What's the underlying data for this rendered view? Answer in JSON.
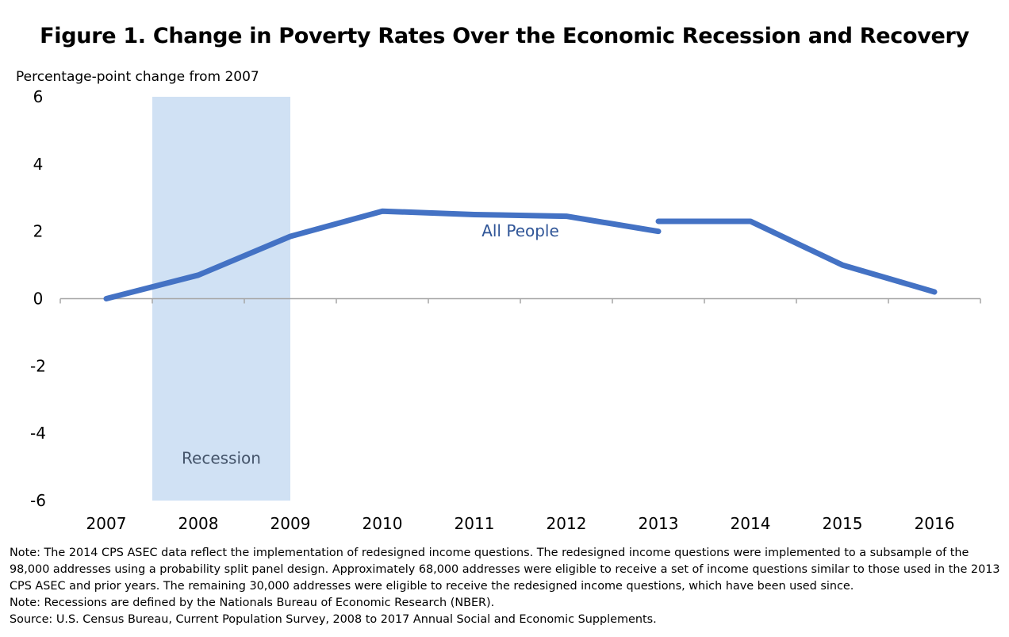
{
  "chart_data": {
    "type": "line",
    "title": "Figure 1. Change in Poverty Rates Over the Economic Recession and Recovery",
    "ylabel": "Percentage-point change from 2007",
    "xlabel": "",
    "ylim": [
      -6,
      6
    ],
    "yticks": [
      "6",
      "4",
      "2",
      "0",
      "-2",
      "-4",
      "-6"
    ],
    "categories": [
      "2007",
      "2008",
      "2009",
      "2010",
      "2011",
      "2012",
      "2013",
      "2014",
      "2015",
      "2016"
    ],
    "series": [
      {
        "name": "All People",
        "color": "#4472C4",
        "segments": [
          {
            "x": [
              "2007",
              "2008",
              "2009",
              "2010",
              "2011",
              "2012",
              "2013"
            ],
            "y": [
              0,
              0.7,
              1.85,
              2.6,
              2.5,
              2.45,
              2.0
            ]
          },
          {
            "x": [
              "2013",
              "2014",
              "2015",
              "2016"
            ],
            "y": [
              2.3,
              2.3,
              1.0,
              0.2
            ]
          }
        ]
      }
    ],
    "shaded_region": {
      "label": "Recession",
      "x_start": "2007.5",
      "x_end": "2009",
      "color": "#D0E1F4"
    },
    "grid": false
  },
  "notes": [
    "Note: The 2014 CPS ASEC data reflect the implementation of redesigned income questions. The redesigned income questions were implemented to a subsample of the",
    "98,000 addresses using a probability split panel design. Approximately 68,000 addresses were eligible to receive a set of income questions similar to those used in the 2013",
    "CPS ASEC and prior years.  The remaining 30,000 addresses were eligible to receive the redesigned income questions, which have been used since.",
    "Note: Recessions are defined by the Nationals Bureau of Economic Research (NBER).",
    "Source: U.S. Census Bureau, Current Population Survey, 2008 to 2017 Annual Social and Economic Supplements."
  ]
}
